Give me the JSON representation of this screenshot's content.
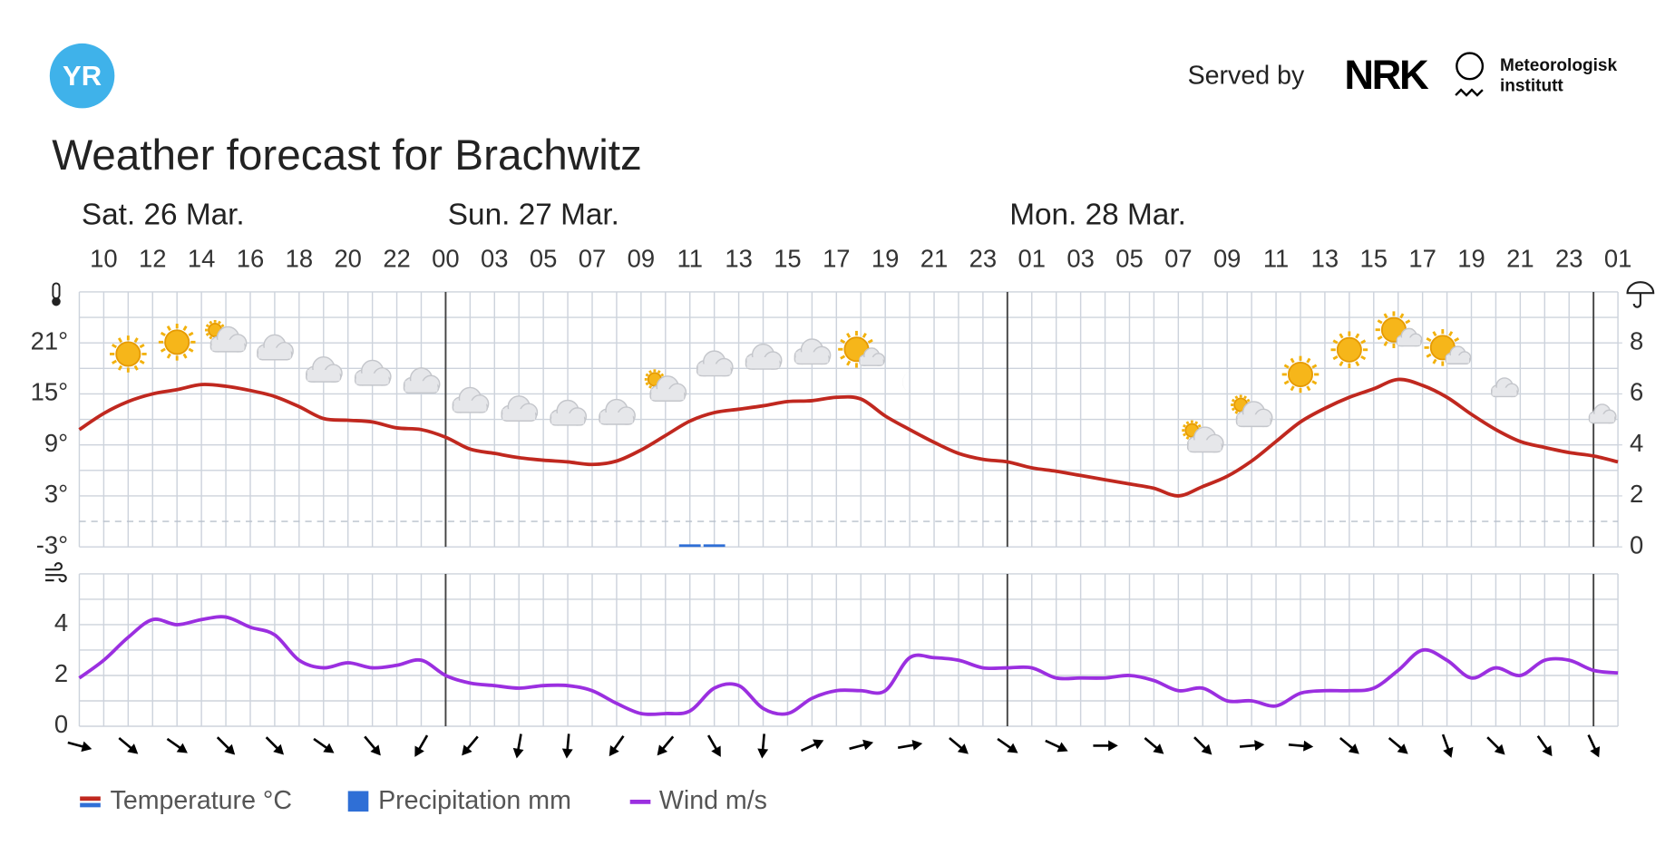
{
  "header": {
    "logo": "YR",
    "served_by": "Served by",
    "partner": "NRK",
    "institute": [
      "Meteorologisk",
      "institutt"
    ]
  },
  "title": "Weather forecast for Brachwitz",
  "days": [
    "Sat. 26 Mar.",
    "Sun. 27 Mar.",
    "Mon. 28 Mar."
  ],
  "chart_data": [
    {
      "type": "line",
      "categories": [
        null,
        "10",
        null,
        "12",
        null,
        "14",
        null,
        "16",
        null,
        "18",
        null,
        "20",
        null,
        "22",
        null,
        "00",
        null,
        "03",
        null,
        "05",
        null,
        "07",
        null,
        "09",
        null,
        "11",
        null,
        "13",
        null,
        "15",
        null,
        "17",
        null,
        "19",
        null,
        "21",
        null,
        "23",
        null,
        "01",
        null,
        "03",
        null,
        "05",
        null,
        "07",
        null,
        "09",
        null,
        "11",
        null,
        "13",
        null,
        "15",
        null,
        "17",
        null,
        "19",
        null,
        "21",
        null,
        "23",
        null,
        "01"
      ],
      "series": [
        {
          "name": "Temperature °C",
          "color": "#c0281f",
          "values": [
            10.8,
            12.7,
            14.1,
            15.0,
            15.5,
            16.1,
            15.9,
            15.4,
            14.7,
            13.5,
            12.1,
            11.9,
            11.7,
            11.0,
            10.8,
            9.9,
            8.5,
            8.0,
            7.5,
            7.2,
            7.0,
            6.7,
            7.1,
            8.4,
            10.1,
            11.8,
            12.8,
            13.2,
            13.6,
            14.1,
            14.2,
            14.6,
            14.4,
            12.4,
            10.8,
            9.3,
            8.0,
            7.3,
            7.0,
            6.3,
            5.9,
            5.4,
            4.9,
            4.4,
            3.9,
            3.0,
            4.1,
            5.3,
            7.1,
            9.4,
            11.7,
            13.3,
            14.6,
            15.6,
            16.7,
            16.0,
            14.6,
            12.6,
            10.8,
            9.4,
            8.7,
            8.1,
            7.7,
            7.0
          ]
        },
        {
          "name": "Precipitation mm",
          "color": "#2f6fd6",
          "axis": "y2",
          "values": [
            0,
            0,
            0,
            0,
            0,
            0,
            0,
            0,
            0,
            0,
            0,
            0,
            0,
            0,
            0,
            0,
            0,
            0,
            0,
            0,
            0,
            0,
            0,
            0,
            0,
            0.1,
            0.1,
            0,
            0,
            0,
            0,
            0,
            0,
            0,
            0,
            0,
            0,
            0,
            0,
            0,
            0,
            0,
            0,
            0,
            0,
            0,
            0,
            0,
            0,
            0,
            0,
            0,
            0,
            0,
            0,
            0,
            0,
            0,
            0,
            0,
            0,
            0,
            0,
            0
          ]
        }
      ],
      "ylim": [
        -3,
        27
      ],
      "yticks": [
        {
          "value": -3,
          "label": "-3°"
        },
        {
          "value": 3,
          "label": "3°"
        },
        {
          "value": 9,
          "label": "9°"
        },
        {
          "value": 15,
          "label": "15°"
        },
        {
          "value": 21,
          "label": "21°"
        }
      ],
      "y2lim": [
        0,
        10
      ],
      "y2ticks": [
        0,
        2,
        4,
        6,
        8
      ],
      "grid": true
    },
    {
      "type": "line",
      "series": [
        {
          "name": "Wind m/s",
          "color": "#9b2fe0",
          "values": [
            1.9,
            2.6,
            3.5,
            4.2,
            4.0,
            4.2,
            4.3,
            3.9,
            3.6,
            2.6,
            2.3,
            2.5,
            2.3,
            2.4,
            2.6,
            2.0,
            1.7,
            1.6,
            1.5,
            1.6,
            1.6,
            1.4,
            0.9,
            0.5,
            0.5,
            0.6,
            1.5,
            1.6,
            0.7,
            0.5,
            1.1,
            1.4,
            1.4,
            1.4,
            2.7,
            2.7,
            2.6,
            2.3,
            2.3,
            2.3,
            1.9,
            1.9,
            1.9,
            2.0,
            1.8,
            1.4,
            1.5,
            1.0,
            1.0,
            0.8,
            1.3,
            1.4,
            1.4,
            1.5,
            2.2,
            3.0,
            2.6,
            1.9,
            2.3,
            2.0,
            2.6,
            2.6,
            2.2,
            2.1
          ]
        }
      ],
      "ylim": [
        0,
        6
      ],
      "yticks": [
        0,
        2,
        4
      ],
      "grid": true
    }
  ]
}
